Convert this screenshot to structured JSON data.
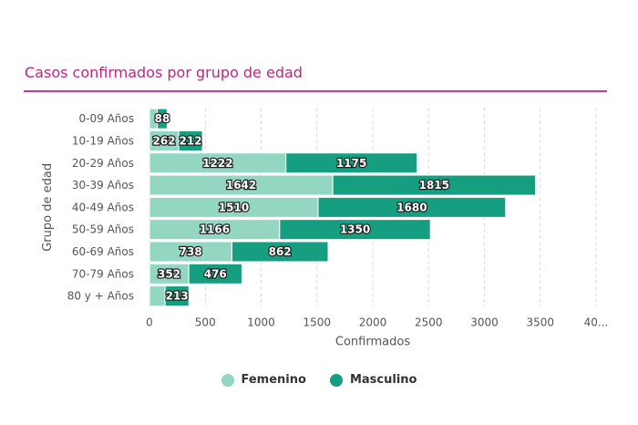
{
  "header": {
    "title": "Casos confirmados por grupo de edad"
  },
  "chart_data": {
    "type": "bar",
    "orientation": "horizontal",
    "stacked": true,
    "title": "Casos confirmados por grupo de edad",
    "xlabel": "Confirmados",
    "ylabel": "Grupo de edad",
    "xlim": [
      0,
      4000
    ],
    "xticks": [
      0,
      500,
      1000,
      1500,
      2000,
      2500,
      3000,
      3500,
      4000
    ],
    "xtick_labels": [
      "0",
      "500",
      "1000",
      "1500",
      "2000",
      "2500",
      "3000",
      "3500",
      "40..."
    ],
    "grid": "vertical-dashed",
    "legend_position": "bottom",
    "categories": [
      "0-09 Años",
      "10-19 Años",
      "20-29 Años",
      "30-39 Años",
      "40-49 Años",
      "50-59 Años",
      "60-69 Años",
      "70-79 Años",
      "80 y + Años"
    ],
    "series": [
      {
        "name": "Femenino",
        "color": "#93d6c2",
        "values": [
          70,
          262,
          1222,
          1642,
          1510,
          1166,
          738,
          352,
          140
        ],
        "labels_shown": [
          false,
          true,
          true,
          true,
          true,
          true,
          true,
          true,
          false
        ]
      },
      {
        "name": "Masculino",
        "color": "#169e80",
        "values": [
          88,
          212,
          1175,
          1815,
          1680,
          1350,
          862,
          476,
          213
        ],
        "labels_shown": [
          true,
          true,
          true,
          true,
          true,
          true,
          true,
          true,
          true
        ]
      }
    ]
  }
}
